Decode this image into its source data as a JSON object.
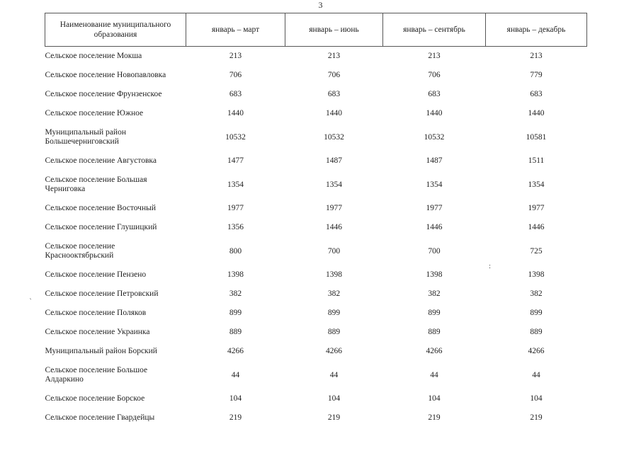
{
  "page": {
    "number": "3"
  },
  "table": {
    "header": {
      "name_col": "Наименование муниципального образования",
      "period_cols": [
        "январь – март",
        "январь – июнь",
        "январь – сентябрь",
        "январь – декабрь"
      ]
    },
    "rows": [
      {
        "name": "Сельское поселение Мокша",
        "values": [
          "213",
          "213",
          "213",
          "213"
        ]
      },
      {
        "name": "Сельское поселение Новопавловка",
        "values": [
          "706",
          "706",
          "706",
          "779"
        ]
      },
      {
        "name": "Сельское поселение Фрунзенское",
        "values": [
          "683",
          "683",
          "683",
          "683"
        ]
      },
      {
        "name": "Сельское поселение Южное",
        "values": [
          "1440",
          "1440",
          "1440",
          "1440"
        ]
      },
      {
        "name": "Муниципальный район Большечерниговский",
        "values": [
          "10532",
          "10532",
          "10532",
          "10581"
        ]
      },
      {
        "name": "Сельское поселение Августовка",
        "values": [
          "1477",
          "1487",
          "1487",
          "1511"
        ]
      },
      {
        "name": "Сельское поселение Большая Черниговка",
        "values": [
          "1354",
          "1354",
          "1354",
          "1354"
        ]
      },
      {
        "name": "Сельское поселение Восточный",
        "values": [
          "1977",
          "1977",
          "1977",
          "1977"
        ]
      },
      {
        "name": "Сельское поселение Глушицкий",
        "values": [
          "1356",
          "1446",
          "1446",
          "1446"
        ]
      },
      {
        "name": "Сельское поселение Краснооктябрьский",
        "values": [
          "800",
          "700",
          "700",
          "725"
        ]
      },
      {
        "name": "Сельское поселение Пензено",
        "values": [
          "1398",
          "1398",
          "1398",
          "1398"
        ]
      },
      {
        "name": "Сельское поселение Петровский",
        "values": [
          "382",
          "382",
          "382",
          "382"
        ]
      },
      {
        "name": "Сельское поселение Поляков",
        "values": [
          "899",
          "899",
          "899",
          "899"
        ]
      },
      {
        "name": "Сельское поселение Украинка",
        "values": [
          "889",
          "889",
          "889",
          "889"
        ]
      },
      {
        "name": "Муниципальный район Борский",
        "values": [
          "4266",
          "4266",
          "4266",
          "4266"
        ]
      },
      {
        "name": "Сельское поселение Большое Алдаркино",
        "values": [
          "44",
          "44",
          "44",
          "44"
        ]
      },
      {
        "name": "Сельское поселение Борское",
        "values": [
          "104",
          "104",
          "104",
          "104"
        ]
      },
      {
        "name": "Сельское поселение Гвардейцы",
        "values": [
          "219",
          "219",
          "219",
          "219"
        ]
      }
    ]
  },
  "artifacts": {
    "colon": ":",
    "tick": "ˎ"
  }
}
